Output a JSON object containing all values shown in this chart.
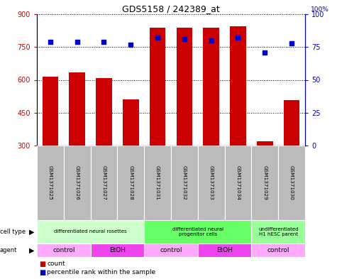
{
  "title": "GDS5158 / 242389_at",
  "samples": [
    "GSM1371025",
    "GSM1371026",
    "GSM1371027",
    "GSM1371028",
    "GSM1371031",
    "GSM1371032",
    "GSM1371033",
    "GSM1371034",
    "GSM1371029",
    "GSM1371030"
  ],
  "counts": [
    615,
    635,
    607,
    510,
    840,
    838,
    838,
    845,
    320,
    508
  ],
  "percentiles": [
    79,
    79,
    79,
    77,
    82,
    81,
    80,
    82,
    71,
    78
  ],
  "ylim_left": [
    300,
    900
  ],
  "ylim_right": [
    0,
    100
  ],
  "yticks_left": [
    300,
    450,
    600,
    750,
    900
  ],
  "yticks_right": [
    0,
    25,
    50,
    75,
    100
  ],
  "bar_color": "#cc0000",
  "dot_color": "#0000cc",
  "background_color": "#ffffff",
  "cell_type_groups": [
    {
      "label": "differentiated neural rosettes",
      "start": 0,
      "end": 3,
      "color": "#ccffcc"
    },
    {
      "label": "differentiated neural\nprogenitor cells",
      "start": 4,
      "end": 7,
      "color": "#66ff66"
    },
    {
      "label": "undifferentiated\nH1 hESC parent",
      "start": 8,
      "end": 9,
      "color": "#99ff99"
    }
  ],
  "agent_groups": [
    {
      "label": "control",
      "start": 0,
      "end": 1,
      "color": "#ffaaff"
    },
    {
      "label": "EtOH",
      "start": 2,
      "end": 3,
      "color": "#ee44ee"
    },
    {
      "label": "control",
      "start": 4,
      "end": 5,
      "color": "#ffaaff"
    },
    {
      "label": "EtOH",
      "start": 6,
      "end": 7,
      "color": "#ee44ee"
    },
    {
      "label": "control",
      "start": 8,
      "end": 9,
      "color": "#ffaaff"
    }
  ],
  "legend_count_color": "#cc0000",
  "legend_dot_color": "#0000cc",
  "bar_width": 0.6,
  "xlim": [
    -0.5,
    9.5
  ],
  "label_row_color": "#bbbbbb"
}
